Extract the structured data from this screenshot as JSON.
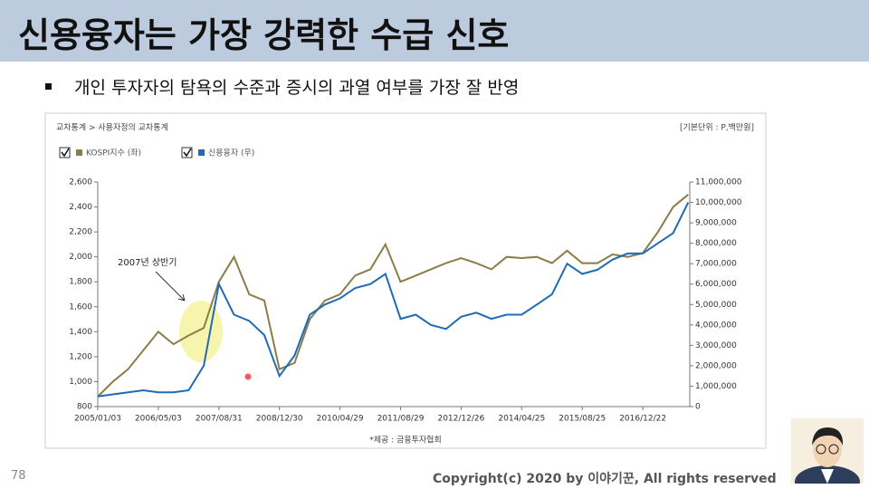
{
  "slide": {
    "title": "신용융자는 가장 강력한 수급 신호",
    "bullet": "개인 투자자의 탐욕의 수준과 증시의 과열 여부를 가장 잘 반영",
    "page_number": "78",
    "copyright": "Copyright(c) 2020 by 이야기꾼, All rights reserved"
  },
  "chart_data": {
    "type": "line",
    "header": "교차통계 > 사용자정의 교차통계",
    "unit_note": "[기본단위 : P,백만원]",
    "annotation": "2007년 상반기",
    "source": "*제공 : 금융투자협회",
    "categories": [
      "2005/01/03",
      null,
      null,
      null,
      "2006/05/03",
      null,
      null,
      null,
      "2007/08/31",
      null,
      null,
      null,
      "2008/12/30",
      null,
      null,
      null,
      "2010/04/29",
      null,
      null,
      null,
      "2011/08/29",
      null,
      null,
      null,
      "2012/12/26",
      null,
      null,
      null,
      "2014/04/25",
      null,
      null,
      null,
      "2015/08/25",
      null,
      null,
      null,
      "2016/12/22",
      null,
      null,
      null
    ],
    "series": [
      {
        "name": "KOSPI지수 (좌)",
        "color": "#8b7d4a",
        "axis": "y",
        "values": [
          880,
          1000,
          1100,
          1250,
          1400,
          1300,
          1370,
          1430,
          1800,
          2000,
          1700,
          1650,
          1100,
          1150,
          1500,
          1650,
          1700,
          1850,
          1900,
          2100,
          1800,
          1850,
          1900,
          1950,
          1990,
          1950,
          1900,
          2000,
          1990,
          2000,
          1950,
          2050,
          1950,
          1950,
          2020,
          2000,
          2030,
          2200,
          2400,
          2500
        ]
      },
      {
        "name": "신용융자 (우)",
        "color": "#1f6bb5",
        "axis": "y2",
        "values": [
          500000,
          600000,
          700000,
          800000,
          700000,
          700000,
          800000,
          2000000,
          6000000,
          4500000,
          4200000,
          3500000,
          1500000,
          2500000,
          4500000,
          5000000,
          5300000,
          5800000,
          6000000,
          6500000,
          4300000,
          4500000,
          4000000,
          3800000,
          4400000,
          4600000,
          4300000,
          4500000,
          4500000,
          5000000,
          5500000,
          7000000,
          6500000,
          6700000,
          7200000,
          7500000,
          7500000,
          8000000,
          8500000,
          10000000
        ]
      }
    ],
    "ylim": [
      800,
      2600
    ],
    "yticks": [
      800,
      {
        "value": 1000,
        "label": "1,000"
      },
      {
        "value": 1200,
        "label": "1,200"
      },
      {
        "value": 1400,
        "label": "1,400"
      },
      {
        "value": 1600,
        "label": "1,600"
      },
      {
        "value": 1800,
        "label": "1,800"
      },
      {
        "value": 2000,
        "label": "2,000"
      },
      {
        "value": 2200,
        "label": "2,200"
      },
      {
        "value": 2400,
        "label": "2,400"
      },
      {
        "value": 2600,
        "label": "2,600"
      }
    ],
    "y2lim": [
      0,
      11000000
    ],
    "y2ticks": [
      0,
      {
        "value": 1000000,
        "label": "1,000,000"
      },
      {
        "value": 2000000,
        "label": "2,000,000"
      },
      {
        "value": 3000000,
        "label": "3,000,000"
      },
      {
        "value": 4000000,
        "label": "4,000,000"
      },
      {
        "value": 5000000,
        "label": "5,000,000"
      },
      {
        "value": 6000000,
        "label": "6,000,000"
      },
      {
        "value": 7000000,
        "label": "7,000,000"
      },
      {
        "value": 8000000,
        "label": "8,000,000"
      },
      {
        "value": 9000000,
        "label": "9,000,000"
      },
      {
        "value": 10000000,
        "label": "10,000,000"
      },
      {
        "value": 11000000,
        "label": "11,000,000"
      }
    ],
    "grid": false
  }
}
